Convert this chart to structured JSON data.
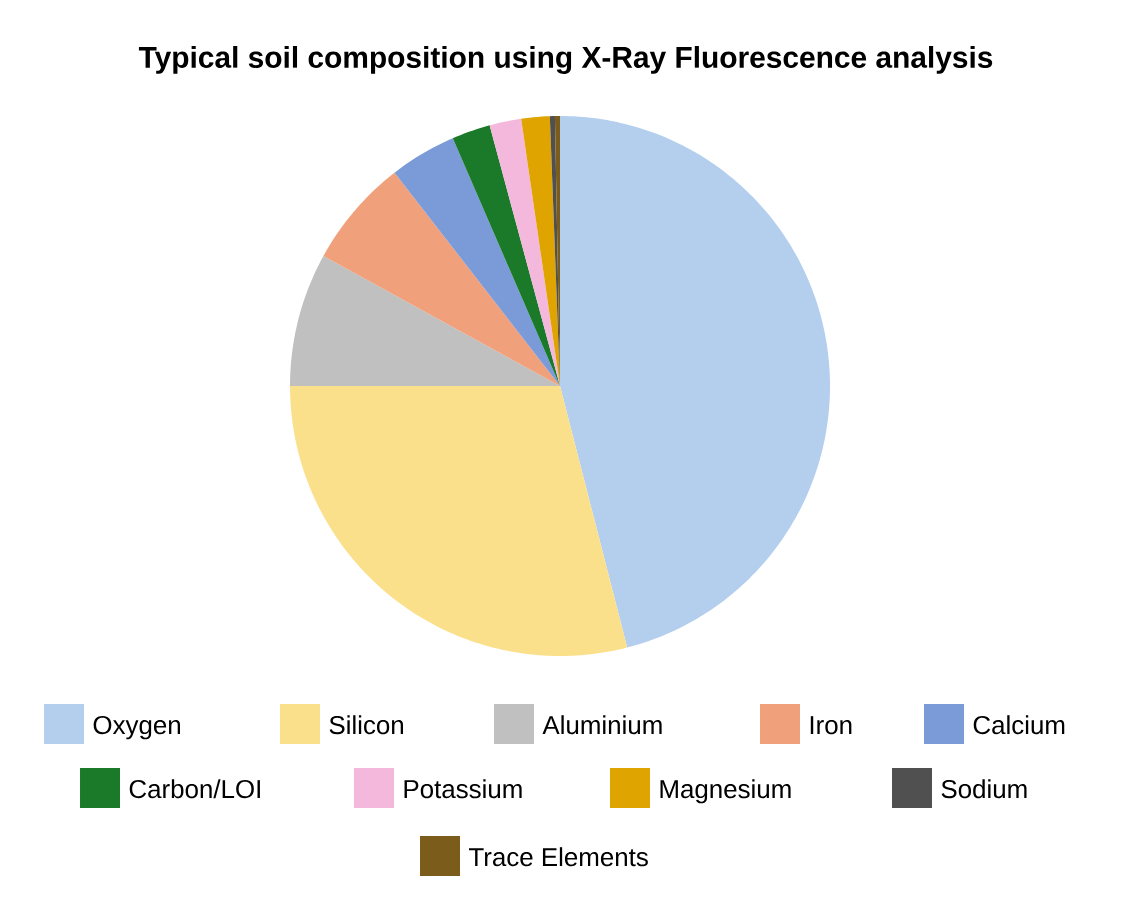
{
  "chart_data": {
    "type": "pie",
    "title": "Typical soil composition using X-Ray Fluorescence analysis",
    "categories": [
      "Oxygen",
      "Silicon",
      "Aluminium",
      "Iron",
      "Calcium",
      "Carbon/LOI",
      "Potassium",
      "Magnesium",
      "Sodium",
      "Trace Elements"
    ],
    "values": [
      46,
      29,
      8,
      6.5,
      4,
      2.3,
      1.9,
      1.7,
      0.3,
      0.3
    ],
    "colors": [
      "#b4cfee",
      "#fbe08c",
      "#c0c0c0",
      "#f0a07a",
      "#7b9ad8",
      "#1a7a2a",
      "#f4b8dc",
      "#e0a400",
      "#505050",
      "#7b5c1a"
    ],
    "legend": "bottom"
  }
}
